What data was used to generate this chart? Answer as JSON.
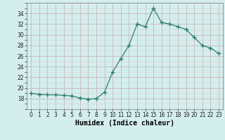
{
  "x": [
    0,
    1,
    2,
    3,
    4,
    5,
    6,
    7,
    8,
    9,
    10,
    11,
    12,
    13,
    14,
    15,
    16,
    17,
    18,
    19,
    20,
    21,
    22,
    23
  ],
  "y": [
    19.0,
    18.8,
    18.7,
    18.7,
    18.6,
    18.5,
    18.1,
    17.9,
    18.0,
    19.2,
    23.0,
    25.5,
    28.0,
    32.0,
    31.5,
    35.0,
    32.3,
    32.0,
    31.5,
    31.0,
    29.5,
    28.0,
    27.5,
    26.5
  ],
  "xlabel": "Humidex (Indice chaleur)",
  "ylim": [
    16,
    36
  ],
  "yticks": [
    18,
    20,
    22,
    24,
    26,
    28,
    30,
    32,
    34
  ],
  "xticks": [
    0,
    1,
    2,
    3,
    4,
    5,
    6,
    7,
    8,
    9,
    10,
    11,
    12,
    13,
    14,
    15,
    16,
    17,
    18,
    19,
    20,
    21,
    22,
    23
  ],
  "line_color": "#2e7d6e",
  "marker_color": "#2e7d6e",
  "bg_color": "#d4eeee",
  "major_grid_color": "#c8b8b8",
  "minor_grid_color": "#ddd0d0",
  "xlabel_fontsize": 7,
  "tick_fontsize": 5.5
}
